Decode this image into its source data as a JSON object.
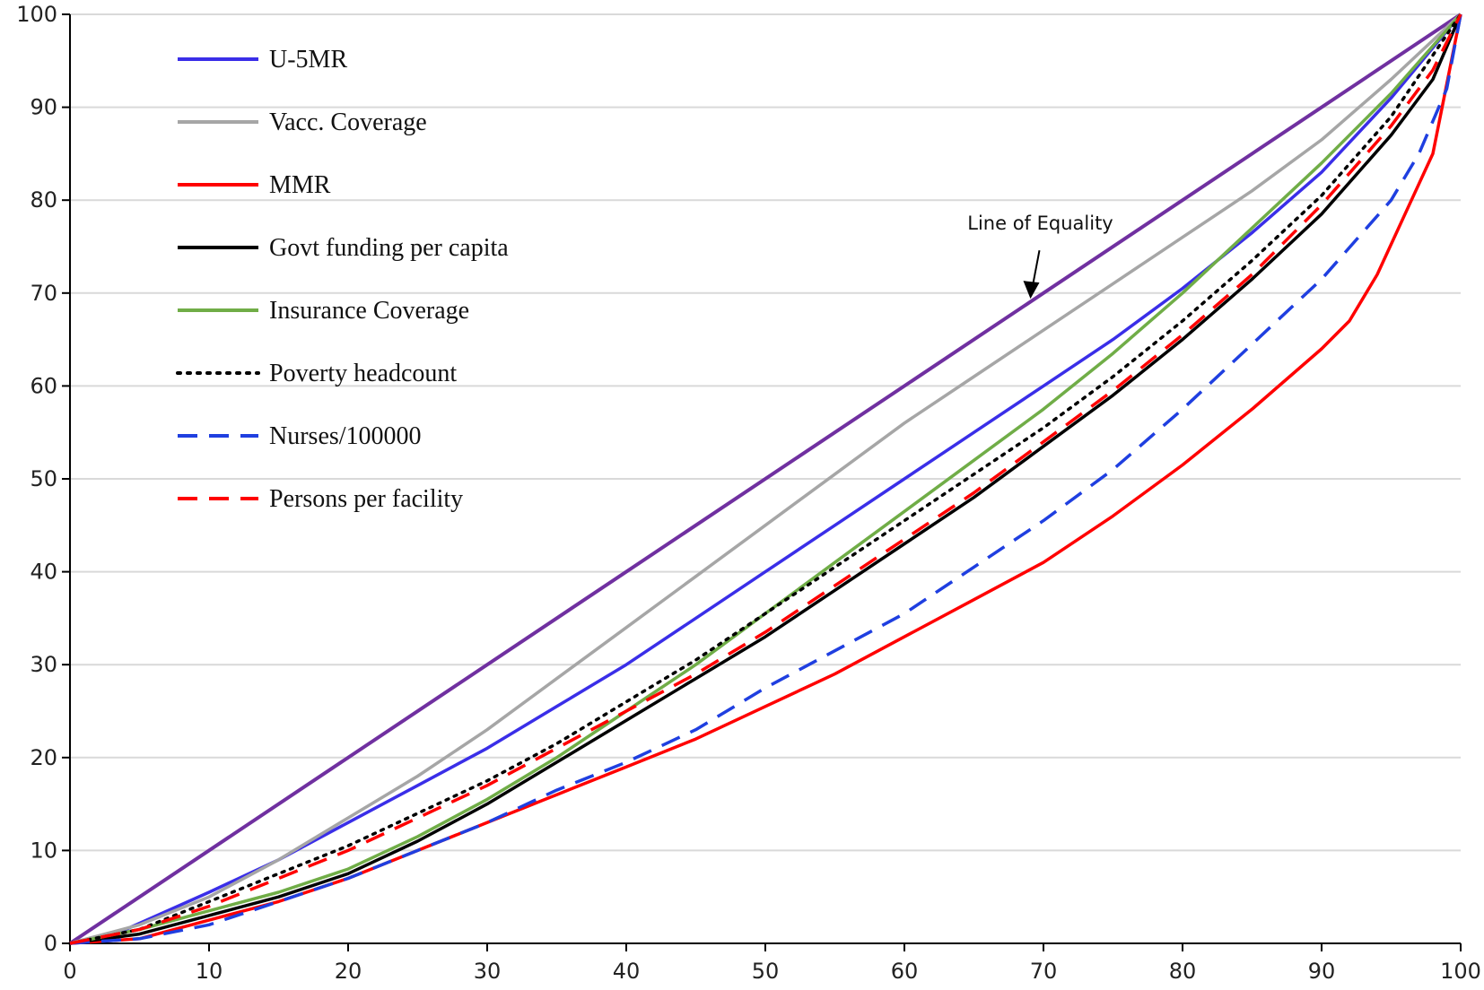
{
  "chart_data": {
    "type": "line",
    "title": "",
    "xlabel": "",
    "ylabel": "",
    "xlim": [
      0,
      100
    ],
    "ylim": [
      0,
      100
    ],
    "xticks": [
      0,
      10,
      20,
      30,
      40,
      50,
      60,
      70,
      80,
      90,
      100
    ],
    "yticks": [
      0,
      10,
      20,
      30,
      40,
      50,
      60,
      70,
      80,
      90,
      100
    ],
    "grid": "horizontal",
    "legend_position": "top-left",
    "annotation": {
      "text": "Line of Equality",
      "target_x": 69,
      "target_y": 69
    },
    "equality_line": {
      "color": "#7030a0",
      "x": [
        0,
        100
      ],
      "y": [
        0,
        100
      ]
    },
    "series": [
      {
        "name": "U-5MR",
        "color": "#3a2ee8",
        "style": "solid",
        "x": [
          0,
          4,
          10,
          15,
          20,
          25,
          30,
          35,
          40,
          45,
          50,
          55,
          60,
          65,
          70,
          75,
          80,
          85,
          90,
          95,
          100
        ],
        "y": [
          0,
          1.5,
          5.5,
          9,
          13,
          17,
          21,
          25.5,
          30,
          35,
          40,
          45,
          50,
          55,
          60,
          65,
          70.5,
          76.5,
          83,
          91,
          100
        ]
      },
      {
        "name": "Vacc. Coverage",
        "color": "#a6a6a6",
        "style": "solid",
        "x": [
          0,
          5,
          10,
          15,
          20,
          25,
          30,
          35,
          40,
          45,
          50,
          55,
          60,
          65,
          70,
          75,
          80,
          85,
          90,
          95,
          100
        ],
        "y": [
          0,
          2,
          5,
          9,
          13.5,
          18,
          23,
          28.5,
          34,
          39.5,
          45,
          50.5,
          56,
          61,
          66,
          71,
          76,
          81,
          86.5,
          93,
          100
        ]
      },
      {
        "name": "MMR",
        "color": "#ff0000",
        "style": "solid",
        "x": [
          0,
          5,
          10,
          15,
          20,
          25,
          30,
          35,
          40,
          45,
          50,
          55,
          60,
          65,
          70,
          75,
          80,
          85,
          90,
          92,
          94,
          96,
          98,
          100
        ],
        "y": [
          0,
          0.5,
          2.5,
          4.5,
          7,
          10,
          13,
          16,
          19,
          22,
          25.5,
          29,
          33,
          37,
          41,
          46,
          51.5,
          57.5,
          64,
          67,
          72,
          78.5,
          85,
          100
        ]
      },
      {
        "name": "Govt funding per capita",
        "color": "#000000",
        "style": "solid",
        "x": [
          0,
          5,
          10,
          15,
          20,
          25,
          30,
          35,
          40,
          45,
          50,
          55,
          60,
          65,
          70,
          75,
          80,
          85,
          90,
          95,
          98,
          100
        ],
        "y": [
          0,
          1,
          3,
          5,
          7.5,
          11,
          15,
          19.5,
          24,
          28.5,
          33,
          38,
          43,
          48,
          53.5,
          59,
          65,
          71.5,
          78.5,
          87,
          93,
          100
        ]
      },
      {
        "name": "Insurance Coverage",
        "color": "#70ad47",
        "style": "solid",
        "x": [
          0,
          5,
          10,
          15,
          20,
          25,
          30,
          35,
          40,
          45,
          50,
          55,
          60,
          65,
          70,
          75,
          80,
          85,
          90,
          95,
          100
        ],
        "y": [
          0,
          1.5,
          3.5,
          5.5,
          8,
          11.5,
          15.5,
          20,
          25,
          30,
          35.5,
          41,
          46.5,
          52,
          57.5,
          63.5,
          70,
          77,
          84,
          91.5,
          100
        ]
      },
      {
        "name": "Poverty headcount",
        "color": "#000000",
        "style": "dotted",
        "x": [
          0,
          5,
          10,
          15,
          20,
          25,
          30,
          35,
          40,
          45,
          50,
          55,
          60,
          65,
          70,
          75,
          80,
          85,
          90,
          95,
          100
        ],
        "y": [
          0,
          1.5,
          4.5,
          7.5,
          10.5,
          14,
          17.5,
          21.5,
          26,
          30.5,
          35.5,
          40.5,
          45.5,
          50.5,
          55.5,
          61,
          67,
          73.5,
          80.5,
          89,
          100
        ]
      },
      {
        "name": "Nurses/100000",
        "color": "#1f3fe0",
        "style": "dashed",
        "x": [
          0,
          5,
          10,
          15,
          20,
          25,
          30,
          35,
          40,
          45,
          50,
          55,
          60,
          65,
          70,
          75,
          80,
          85,
          90,
          95,
          97,
          99,
          100
        ],
        "y": [
          0,
          0.5,
          2,
          4.5,
          7,
          10,
          13,
          16.5,
          19.5,
          23,
          27.5,
          31.5,
          35.5,
          40.5,
          45.5,
          51,
          57.5,
          64.5,
          71.5,
          80,
          85,
          92,
          100
        ]
      },
      {
        "name": "Persons per facility",
        "color": "#ff0000",
        "style": "dashed",
        "x": [
          0,
          5,
          10,
          15,
          20,
          25,
          30,
          35,
          40,
          45,
          50,
          55,
          60,
          65,
          70,
          75,
          80,
          85,
          90,
          95,
          98,
          100
        ],
        "y": [
          0,
          1.5,
          4,
          7,
          10,
          13.5,
          17,
          21,
          25,
          29,
          33.5,
          38.5,
          43.5,
          48.5,
          54,
          59.5,
          65.5,
          72,
          79.5,
          88,
          94,
          100
        ]
      }
    ]
  }
}
